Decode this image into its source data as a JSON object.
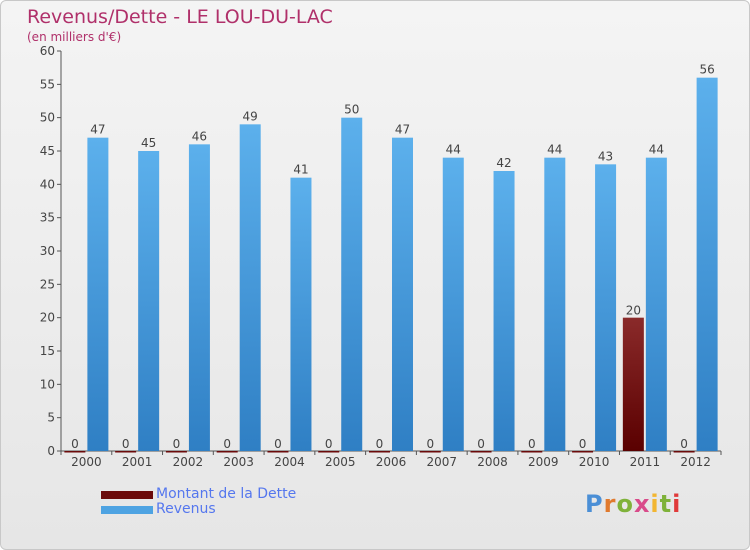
{
  "chart_data": {
    "type": "bar",
    "title": "Revenus/Dette - LE LOU-DU-LAC",
    "subtitle": "(en milliers d'€)",
    "categories": [
      "2000",
      "2001",
      "2002",
      "2003",
      "2004",
      "2005",
      "2006",
      "2007",
      "2008",
      "2009",
      "2010",
      "2011",
      "2012"
    ],
    "series": [
      {
        "name": "Montant de la Dette",
        "color": "#6b0a0a",
        "values": [
          0,
          0,
          0,
          0,
          0,
          0,
          0,
          0,
          0,
          0,
          0,
          20,
          0
        ]
      },
      {
        "name": "Revenus",
        "color": "#4ea3e2",
        "values": [
          47,
          45,
          46,
          49,
          41,
          50,
          47,
          44,
          42,
          44,
          43,
          44,
          56
        ]
      }
    ],
    "ylim": [
      0,
      60
    ],
    "yticks": [
      0,
      5,
      10,
      15,
      20,
      25,
      30,
      35,
      40,
      45,
      50,
      55,
      60
    ],
    "grid": false,
    "legend": "bottom-left"
  },
  "brand": {
    "logo_text": "Proxiti",
    "letter_colors": [
      "#4b8fd6",
      "#e07a2e",
      "#7fb23a",
      "#d94b8a",
      "#f2b632",
      "#7fb23a",
      "#e03a3a"
    ]
  }
}
